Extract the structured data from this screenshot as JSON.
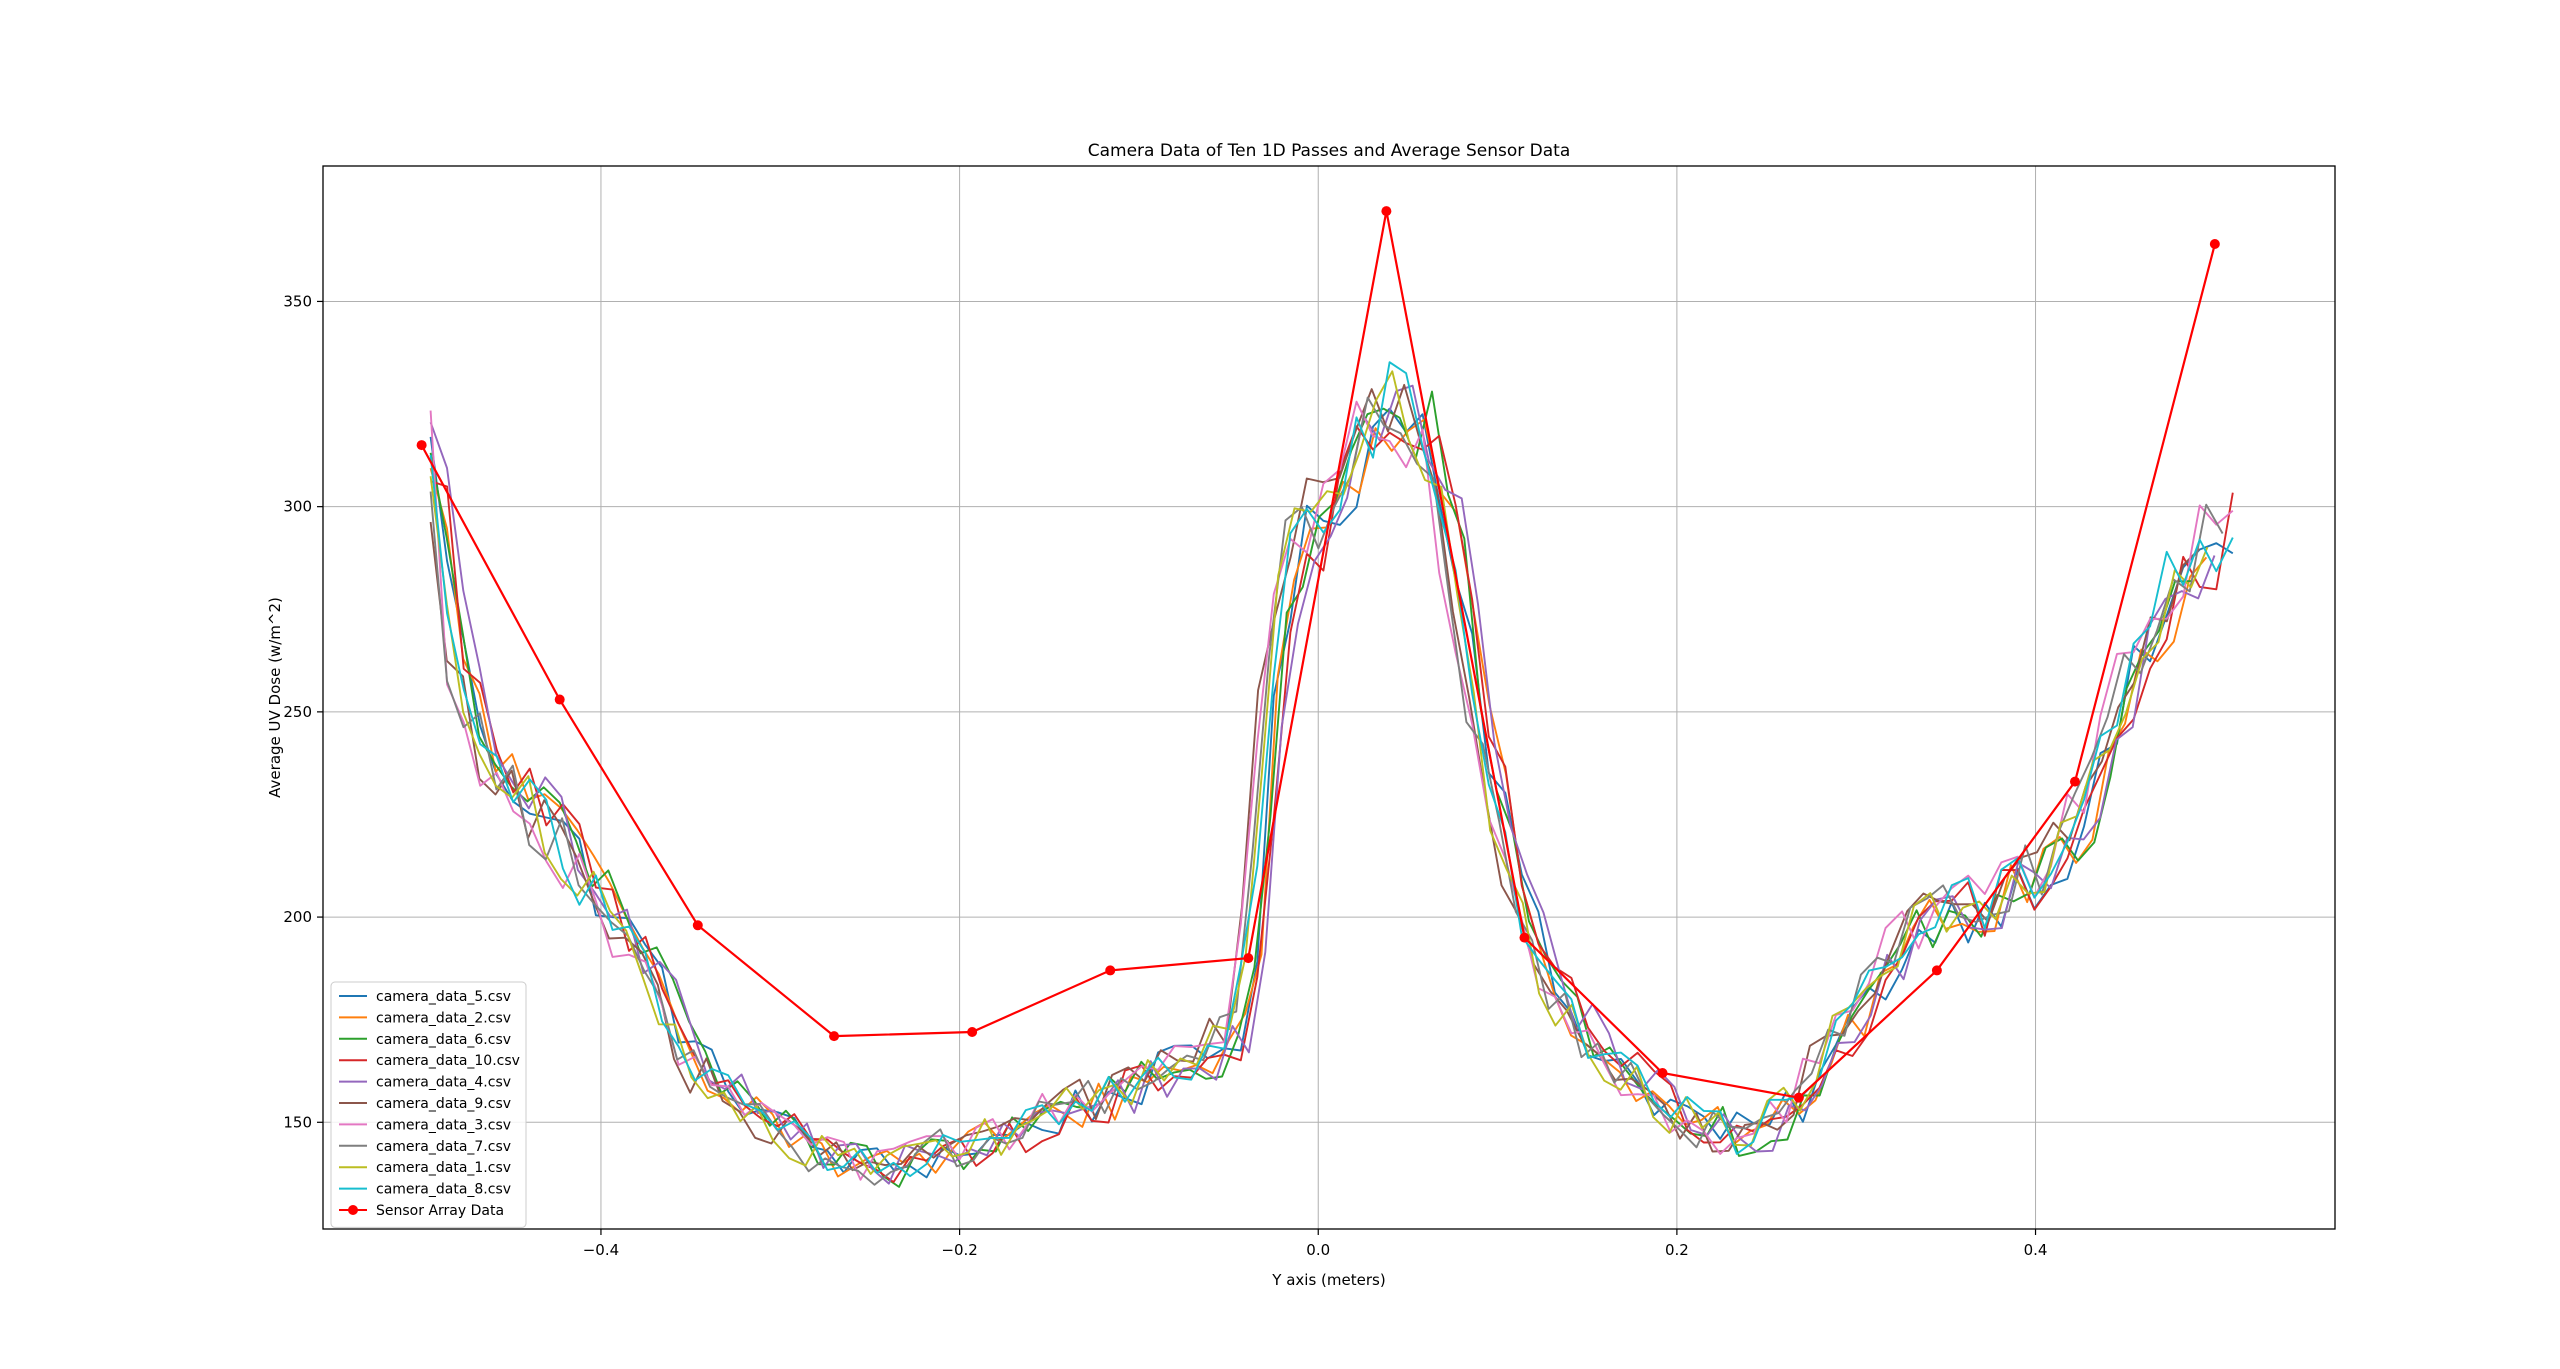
{
  "chart_data": {
    "type": "line",
    "title": "Camera Data of Ten 1D Passes and Average Sensor Data",
    "xlabel": "Y axis (meters)",
    "ylabel": "Average UV Dose (w/m^2)",
    "xlim": [
      -0.555,
      0.567
    ],
    "ylim": [
      124,
      383
    ],
    "xticks": [
      -0.4,
      -0.2,
      0.0,
      0.2,
      0.4
    ],
    "xtick_labels": [
      "−0.4",
      "−0.2",
      "0.0",
      "0.2",
      "0.4"
    ],
    "yticks": [
      150,
      200,
      250,
      300,
      350
    ],
    "ytick_labels": [
      "150",
      "200",
      "250",
      "300",
      "350"
    ],
    "grid": true,
    "legend_position": "lower-left",
    "camera_series_x": {
      "start": -0.495,
      "end": 0.51,
      "count": 110
    },
    "camera_profile": {
      "x": [
        -0.495,
        -0.48,
        -0.46,
        -0.44,
        -0.42,
        -0.4,
        -0.37,
        -0.35,
        -0.32,
        -0.3,
        -0.28,
        -0.26,
        -0.24,
        -0.22,
        -0.2,
        -0.18,
        -0.16,
        -0.14,
        -0.12,
        -0.1,
        -0.08,
        -0.06,
        -0.045,
        -0.035,
        -0.025,
        -0.015,
        0.0,
        0.02,
        0.035,
        0.045,
        0.06,
        0.075,
        0.09,
        0.11,
        0.13,
        0.15,
        0.17,
        0.19,
        0.21,
        0.23,
        0.25,
        0.27,
        0.29,
        0.31,
        0.33,
        0.35,
        0.37,
        0.39,
        0.41,
        0.43,
        0.45,
        0.47,
        0.49,
        0.51
      ],
      "y": [
        310,
        262,
        238,
        228,
        218,
        203,
        186,
        165,
        156,
        148,
        143,
        140,
        139,
        141,
        144,
        146,
        149,
        153,
        156,
        160,
        163,
        167,
        172,
        200,
        262,
        285,
        298,
        312,
        322,
        324,
        318,
        290,
        248,
        208,
        182,
        170,
        162,
        155,
        150,
        147,
        149,
        156,
        170,
        184,
        195,
        200,
        203,
        208,
        213,
        228,
        255,
        275,
        288,
        295
      ]
    },
    "series": [
      {
        "name": "camera_data_5.csv",
        "color": "#1f77b4"
      },
      {
        "name": "camera_data_2.csv",
        "color": "#ff7f0e"
      },
      {
        "name": "camera_data_6.csv",
        "color": "#2ca02c"
      },
      {
        "name": "camera_data_10.csv",
        "color": "#d62728"
      },
      {
        "name": "camera_data_4.csv",
        "color": "#9467bd"
      },
      {
        "name": "camera_data_9.csv",
        "color": "#8c564b"
      },
      {
        "name": "camera_data_3.csv",
        "color": "#e377c2"
      },
      {
        "name": "camera_data_7.csv",
        "color": "#7f7f7f"
      },
      {
        "name": "camera_data_1.csv",
        "color": "#bcbd22"
      },
      {
        "name": "camera_data_8.csv",
        "color": "#17becf"
      },
      {
        "name": "Sensor Array Data",
        "color": "#ff0000",
        "marker": "circle",
        "x": [
          -0.5,
          -0.423,
          -0.346,
          -0.27,
          -0.193,
          -0.116,
          -0.039,
          0.038,
          0.115,
          0.192,
          0.268,
          0.345,
          0.422,
          0.5
        ],
        "y": [
          315,
          253,
          198,
          171,
          172,
          187,
          190,
          372,
          195,
          162,
          156,
          187,
          233,
          364
        ]
      }
    ]
  }
}
